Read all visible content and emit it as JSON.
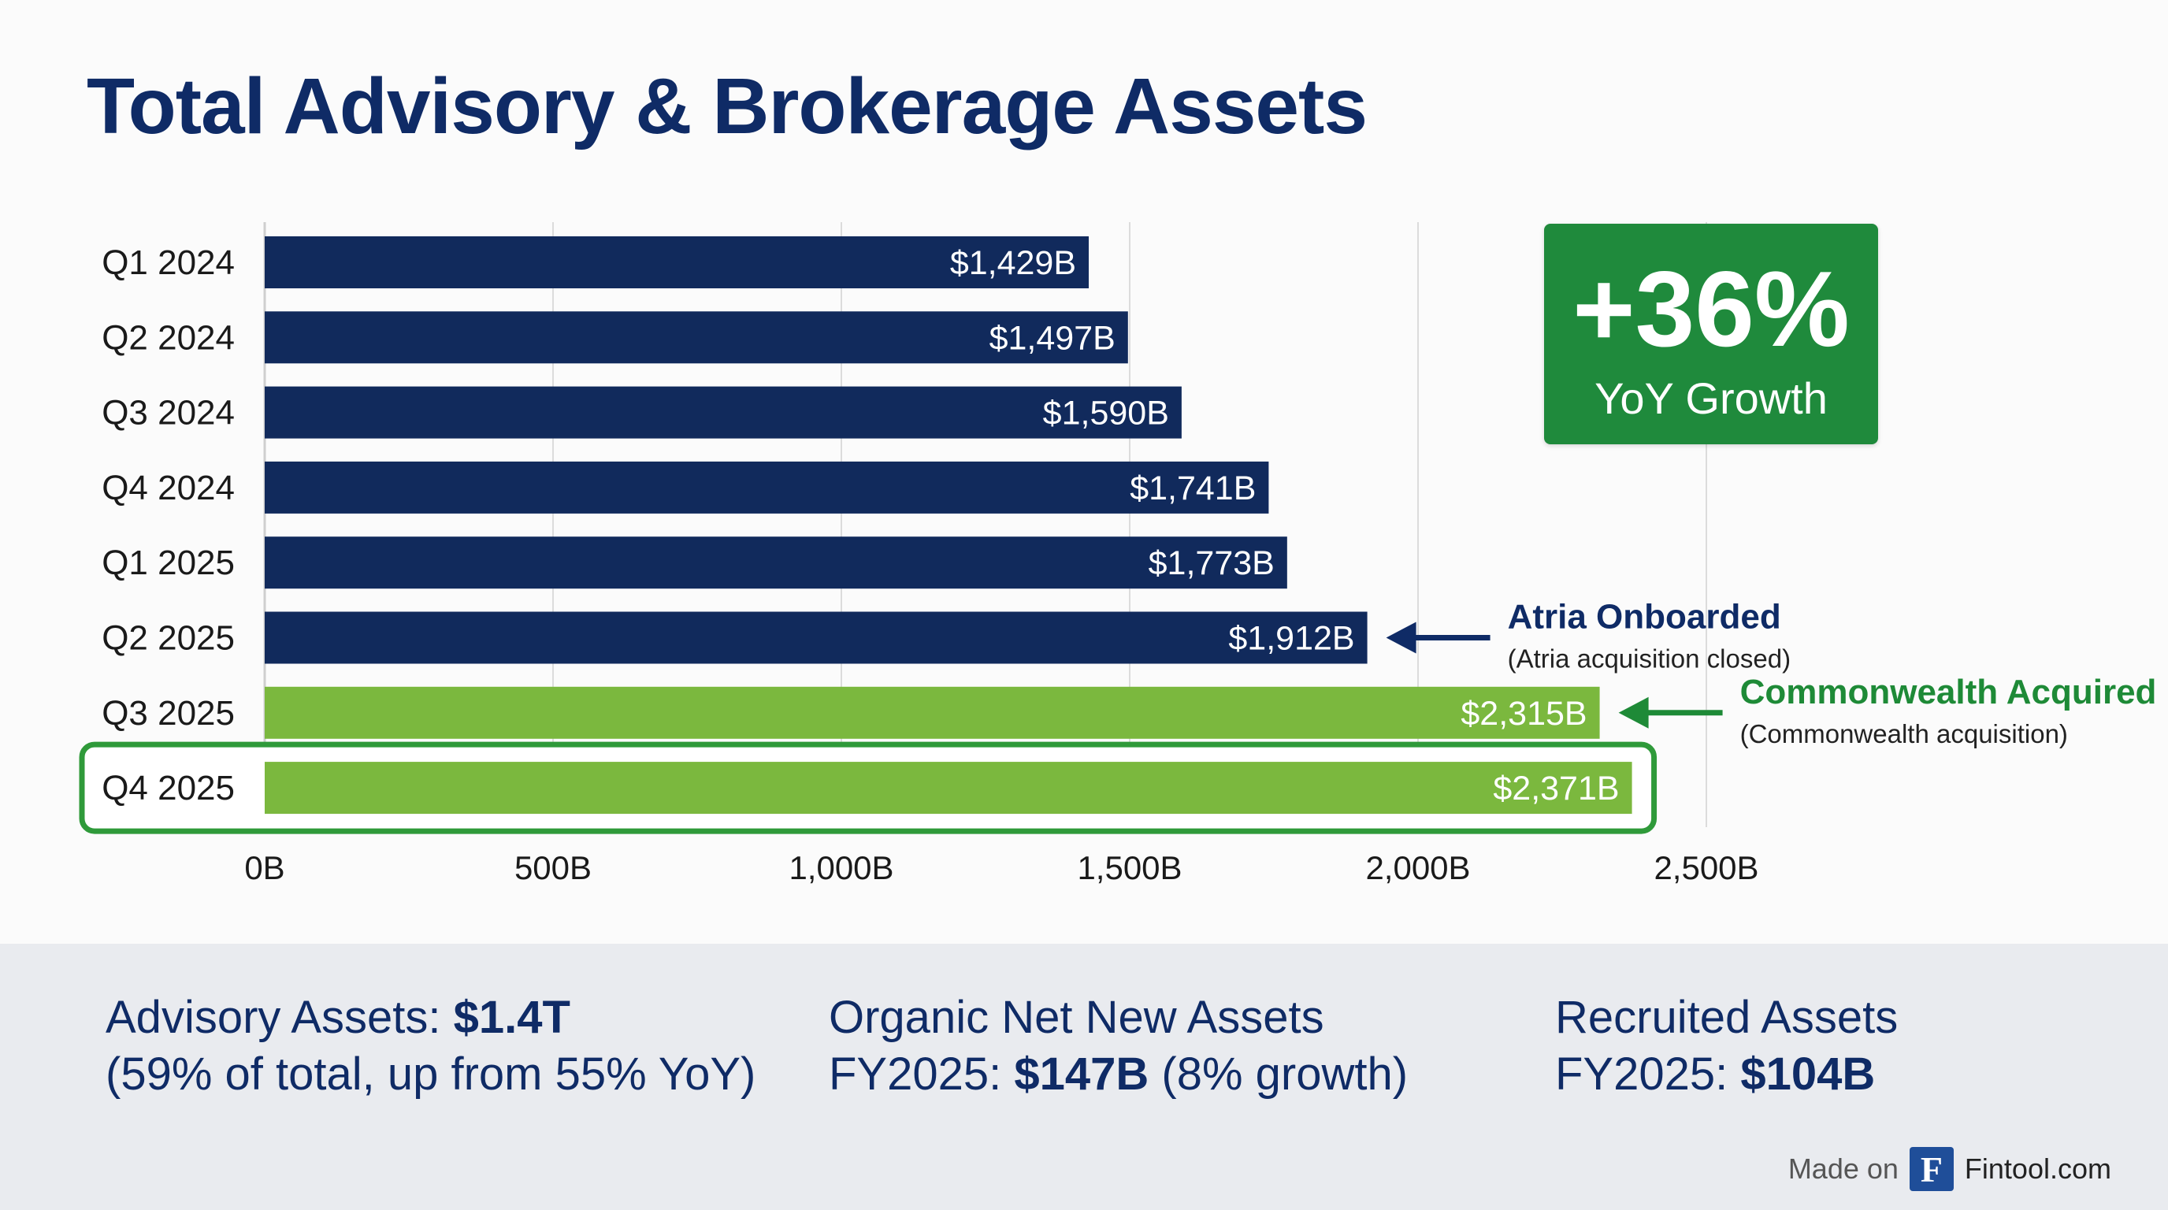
{
  "title": "Total Advisory & Brokerage Assets",
  "chart_data": {
    "type": "bar",
    "orientation": "horizontal",
    "title": "Total Advisory & Brokerage Assets",
    "categories": [
      "Q1 2024",
      "Q2 2024",
      "Q3 2024",
      "Q4 2024",
      "Q1 2025",
      "Q2 2025",
      "Q3 2025",
      "Q4 2025"
    ],
    "values": [
      1429,
      1497,
      1590,
      1741,
      1773,
      1912,
      2315,
      2371
    ],
    "value_labels": [
      "$1,429B",
      "$1,497B",
      "$1,590B",
      "$1,741B",
      "$1,773B",
      "$1,912B",
      "$2,315B",
      "$2,371B"
    ],
    "unit": "$B",
    "xlim": [
      0,
      2500
    ],
    "xticks": [
      0,
      500,
      1000,
      1500,
      2000,
      2500
    ],
    "xtick_labels": [
      "0B",
      "500B",
      "1,000B",
      "1,500B",
      "2,000B",
      "2,500B"
    ],
    "grid": true,
    "highlighted_category": "Q4 2025",
    "colors": {
      "bar_default": "#112a5c",
      "bar_green": "#7bb83e",
      "highlight_outline": "#2f9a3a",
      "annotation_navy": "#0f2b66",
      "annotation_green": "#1e8a37",
      "grid": "#dcdcdc"
    },
    "bar_colors": [
      "bar_default",
      "bar_default",
      "bar_default",
      "bar_default",
      "bar_default",
      "bar_default",
      "bar_green",
      "bar_green"
    ],
    "annotations": [
      {
        "category": "Q2 2025",
        "title": "Atria Onboarded",
        "subtitle": "(Atria acquisition closed)",
        "color": "annotation_navy"
      },
      {
        "category": "Q3 2025",
        "title": "Commonwealth Acquired",
        "subtitle": "(Commonwealth acquisition)",
        "color": "annotation_green"
      }
    ]
  },
  "growth_badge": {
    "value": "+36%",
    "label": "YoY Growth",
    "color": "#1f8a3c"
  },
  "stats": [
    {
      "line1_label": "Advisory Assets: ",
      "line1_value": "$1.4T",
      "line2_text": "(59% of total, up from 55% YoY)"
    },
    {
      "line1_label": "Organic Net New Assets",
      "line2_label": "FY2025: ",
      "line2_value": "$147B",
      "line2_suffix": " (8% growth)"
    },
    {
      "line1_label": "Recruited Assets",
      "line2_label": "FY2025: ",
      "line2_value": "$104B"
    }
  ],
  "footer": {
    "made_on": "Made on",
    "logo_letter": "F",
    "brand": "Fintool.com"
  }
}
